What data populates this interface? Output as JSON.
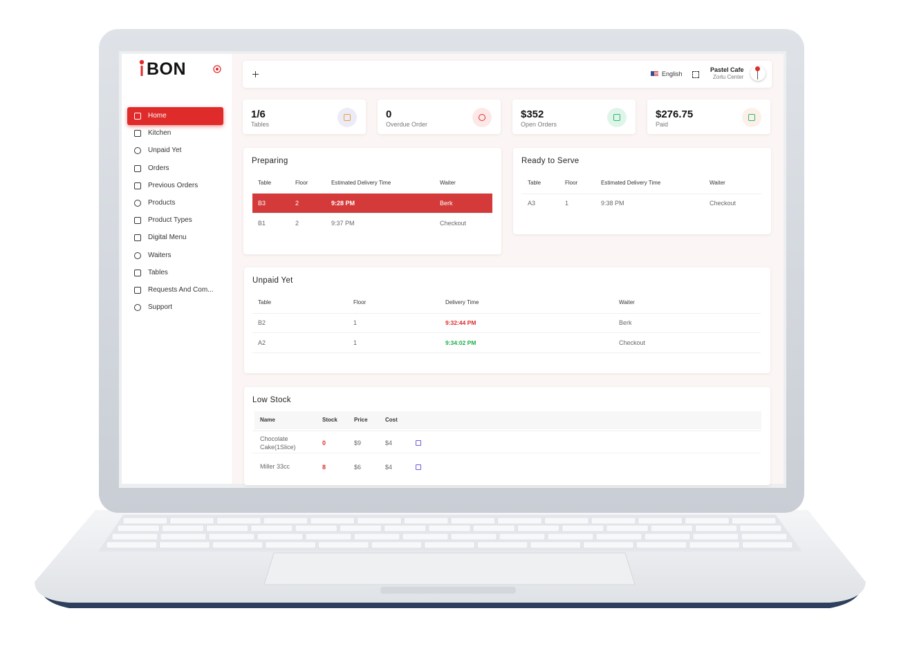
{
  "logo": "BON",
  "sidebar": {
    "items": [
      "Home",
      "Kitchen",
      "Unpaid Yet",
      "Orders",
      "Previous Orders",
      "Products",
      "Product Types",
      "Digital Menu",
      "Waiters",
      "Tables",
      "Requests And Com...",
      "Support"
    ]
  },
  "header": {
    "language": "English",
    "cafe": "Pastel Cafe",
    "location": "Zorlu Center"
  },
  "stats": [
    {
      "value": "1/6",
      "label": "Tables"
    },
    {
      "value": "0",
      "label": "Overdue Order"
    },
    {
      "value": "$352",
      "label": "Open Orders"
    },
    {
      "value": "$276.75",
      "label": "Paid"
    }
  ],
  "preparing": {
    "title": "Preparing",
    "columns": [
      "Table",
      "Floor",
      "Estimated Delivery Time",
      "Waiter"
    ],
    "rows": [
      [
        "B3",
        "2",
        "9:28 PM",
        "Berk"
      ],
      [
        "B1",
        "2",
        "9:37 PM",
        "Checkout"
      ]
    ]
  },
  "ready": {
    "title": "Ready to Serve",
    "columns": [
      "Table",
      "Floor",
      "Estimated Delivery Time",
      "Waiter"
    ],
    "rows": [
      [
        "A3",
        "1",
        "9:38 PM",
        "Checkout"
      ]
    ]
  },
  "unpaid": {
    "title": "Unpaid Yet",
    "columns": [
      "Table",
      "Floor",
      "Delivery Time",
      "Waiter"
    ],
    "rows": [
      [
        "B2",
        "1",
        "9:32:44 PM",
        "Berk"
      ],
      [
        "A2",
        "1",
        "9:34:02 PM",
        "Checkout"
      ]
    ]
  },
  "low_stock": {
    "title": "Low Stock",
    "columns": [
      "Name",
      "Stock",
      "Price",
      "Cost"
    ],
    "rows": [
      [
        "Chocolate Cake(1Slice)",
        "0",
        "$9",
        "$4"
      ],
      [
        "Miller 33cc",
        "8",
        "$6",
        "$4"
      ]
    ]
  }
}
